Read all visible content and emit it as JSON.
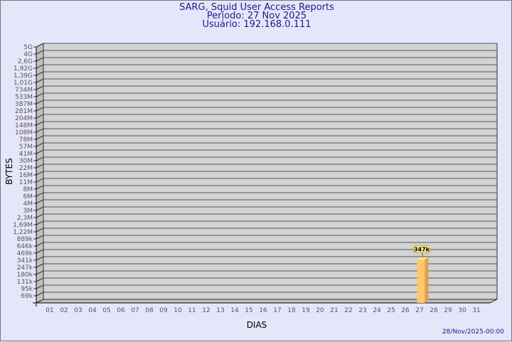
{
  "header": {
    "title": "SARG, Squid User Access Reports",
    "period": "Período: 27 Nov 2025",
    "user": "Usuário: 192.168.0.111"
  },
  "footer": {
    "timestamp": "28/Nov/2025-00:00"
  },
  "colors": {
    "background": "#e6e6fa",
    "panel": "#d3d3d3",
    "bar": "#ffc66e",
    "bar_side": "#dba24a",
    "title": "#1a1a8c"
  },
  "chart_data": {
    "type": "bar",
    "style": "3d",
    "xlabel": "DIAS",
    "ylabel": "BYTES",
    "grid": true,
    "y_scale": "log",
    "ytick_labels": [
      "5G",
      "4G",
      "2,6G",
      "1,92G",
      "1,39G",
      "1,01G",
      "734M",
      "533M",
      "387M",
      "281M",
      "204M",
      "148M",
      "108M",
      "78M",
      "57M",
      "41M",
      "30M",
      "22M",
      "16M",
      "11M",
      "8M",
      "6M",
      "4M",
      "3M",
      "2,3M",
      "1,69M",
      "1,22M",
      "889k",
      "646k",
      "469k",
      "341k",
      "247k",
      "180k",
      "131k",
      "95k",
      "69k"
    ],
    "categories": [
      "01",
      "02",
      "03",
      "04",
      "05",
      "06",
      "07",
      "08",
      "09",
      "10",
      "11",
      "12",
      "13",
      "14",
      "15",
      "16",
      "17",
      "18",
      "19",
      "20",
      "21",
      "22",
      "23",
      "24",
      "25",
      "26",
      "27",
      "28",
      "29",
      "30",
      "31"
    ],
    "values": [
      null,
      null,
      null,
      null,
      null,
      null,
      null,
      null,
      null,
      null,
      null,
      null,
      null,
      null,
      null,
      null,
      null,
      null,
      null,
      null,
      null,
      null,
      null,
      null,
      null,
      null,
      347000,
      null,
      null,
      null,
      null
    ],
    "data_labels": {
      "27": "347k"
    }
  }
}
